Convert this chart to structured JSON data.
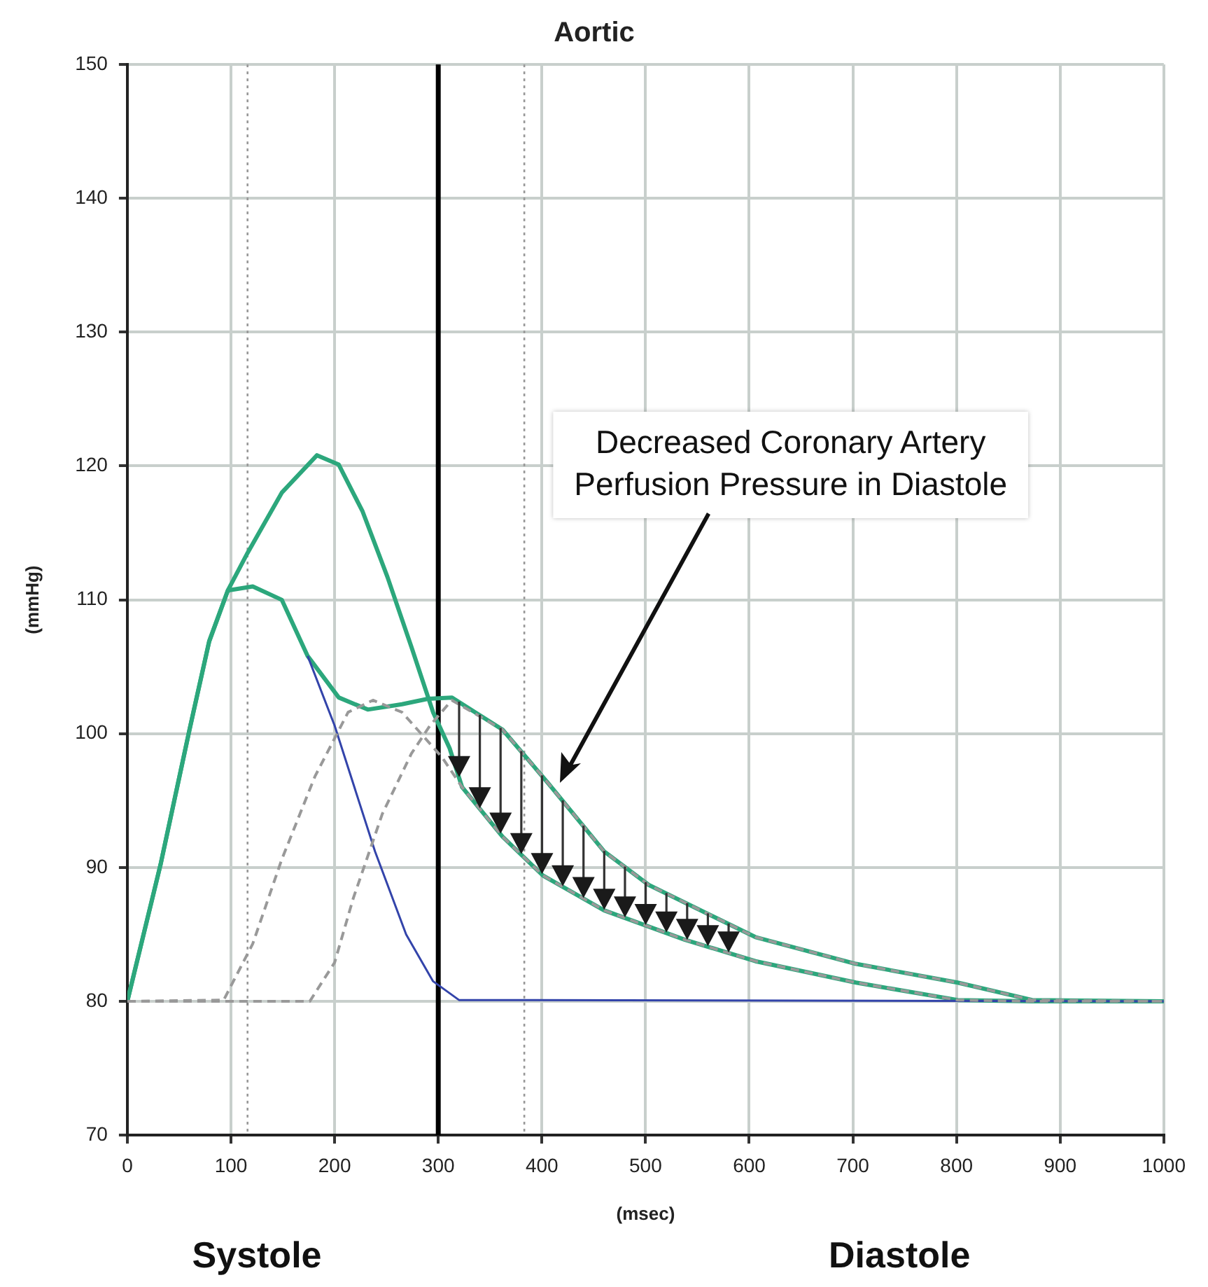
{
  "chart_data": {
    "type": "line",
    "title": "Aortic",
    "xlabel": "(msec)",
    "ylabel": "(mmHg)",
    "xlim": [
      0,
      1000
    ],
    "xticks": [
      0,
      100,
      200,
      300,
      400,
      500,
      600,
      700,
      800,
      900,
      1000
    ],
    "ylim": [
      70,
      150
    ],
    "yticks": [
      70,
      80,
      90,
      100,
      110,
      120,
      130,
      140,
      150
    ],
    "grid": true,
    "marker": "none",
    "series": [
      {
        "color": "#999999",
        "line_style": "dashed",
        "x": [
          0,
          93,
          121,
          149,
          181,
          213,
          237,
          265,
          288,
          304,
          323,
          362,
          401,
          460,
          538,
          606,
          703,
          801,
          873,
          1000
        ],
        "values": [
          80,
          80.1,
          84.3,
          90.6,
          96.8,
          101.6,
          102.5,
          101.6,
          99.6,
          98.2,
          96,
          92.3,
          89.4,
          86.8,
          84.6,
          83,
          81.4,
          80.1,
          80,
          80
        ]
      },
      {
        "color": "#999999",
        "line_style": "dashed",
        "x": [
          0,
          176,
          200,
          218,
          246,
          274,
          292,
          313,
          362,
          406,
          460,
          503,
          606,
          703,
          801,
          873,
          1000
        ],
        "values": [
          80,
          80,
          82.9,
          87.7,
          94,
          98.5,
          100.6,
          102.5,
          100.3,
          96.3,
          91.2,
          88.7,
          84.8,
          82.8,
          81.4,
          80.1,
          80
        ]
      },
      {
        "color": "#3344aa",
        "line_style": "solid",
        "x": [
          174,
          200,
          239,
          269,
          295,
          320,
          1000
        ],
        "values": [
          105.8,
          100.6,
          91.2,
          85,
          81.5,
          80.1,
          80
        ]
      },
      {
        "color": "#2ca77c",
        "line_style": "solid",
        "x": [
          0,
          32,
          60,
          79,
          97,
          121,
          149,
          174,
          204,
          232,
          265,
          290,
          313,
          362,
          406,
          460,
          503,
          606,
          703,
          801,
          873,
          1000
        ],
        "values": [
          80,
          90.2,
          100.3,
          106.9,
          110.7,
          111,
          110,
          105.8,
          102.7,
          101.8,
          102.2,
          102.6,
          102.7,
          100.3,
          96.3,
          91.2,
          88.7,
          84.8,
          82.8,
          81.4,
          80.1,
          80
        ]
      },
      {
        "color": "#2ca77c",
        "line_style": "solid",
        "x": [
          0,
          32,
          60,
          79,
          97,
          116,
          149,
          183,
          204,
          227,
          251,
          274,
          295,
          311,
          323,
          362,
          401,
          460,
          538,
          606,
          703,
          801,
          873,
          1000
        ],
        "values": [
          80,
          90.2,
          100.3,
          106.9,
          110.7,
          113.5,
          118,
          120.8,
          120.1,
          116.6,
          111.7,
          106.5,
          101.6,
          98.9,
          96,
          92.3,
          89.4,
          86.8,
          84.6,
          83,
          81.4,
          80.1,
          80,
          80
        ]
      }
    ],
    "ref_lines": [
      {
        "axis": "x",
        "value": 116,
        "color": "#999999",
        "line_style": "dotted"
      },
      {
        "axis": "x",
        "value": 383,
        "color": "#999999",
        "line_style": "dotted"
      },
      {
        "axis": "x",
        "value": 300,
        "color": "#000000",
        "line_style": "solid"
      }
    ],
    "annotations": [
      "Decreased Coronary Artery Perfusion Pressure in Diastole",
      "Systole",
      "Diastole"
    ]
  }
}
